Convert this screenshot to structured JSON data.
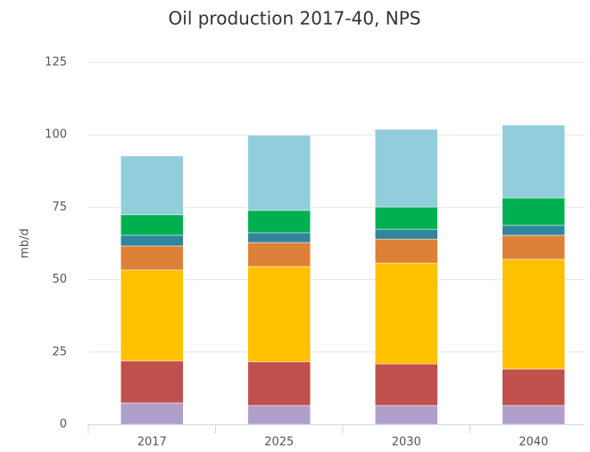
{
  "chart_data": {
    "type": "stacked_bar",
    "title": "Oil production 2017-40, NPS",
    "y_label": "mb/d",
    "categories": [
      "2017",
      "2025",
      "2030",
      "2040"
    ],
    "series": [
      {
        "color": "#b09fca",
        "values": [
          7.4,
          6.5,
          6.5,
          6.5
        ]
      },
      {
        "color": "#c0504d",
        "values": [
          14.5,
          15.1,
          14.4,
          12.6
        ]
      },
      {
        "color": "#ffc000",
        "values": [
          31.4,
          32.9,
          34.8,
          37.9
        ]
      },
      {
        "color": "#dd8139",
        "values": [
          8.3,
          8.3,
          8.3,
          8.3
        ]
      },
      {
        "color": "#31859c",
        "values": [
          3.7,
          3.4,
          3.4,
          3.4
        ]
      },
      {
        "color": "#00b050",
        "values": [
          7.1,
          7.7,
          7.7,
          9.5
        ]
      },
      {
        "color": "#92cddc",
        "values": [
          20.3,
          25.9,
          26.8,
          25.2
        ]
      }
    ],
    "ylim": [
      0,
      125
    ],
    "yticks": [
      0,
      25,
      50,
      75,
      100,
      125
    ],
    "grid": true
  }
}
